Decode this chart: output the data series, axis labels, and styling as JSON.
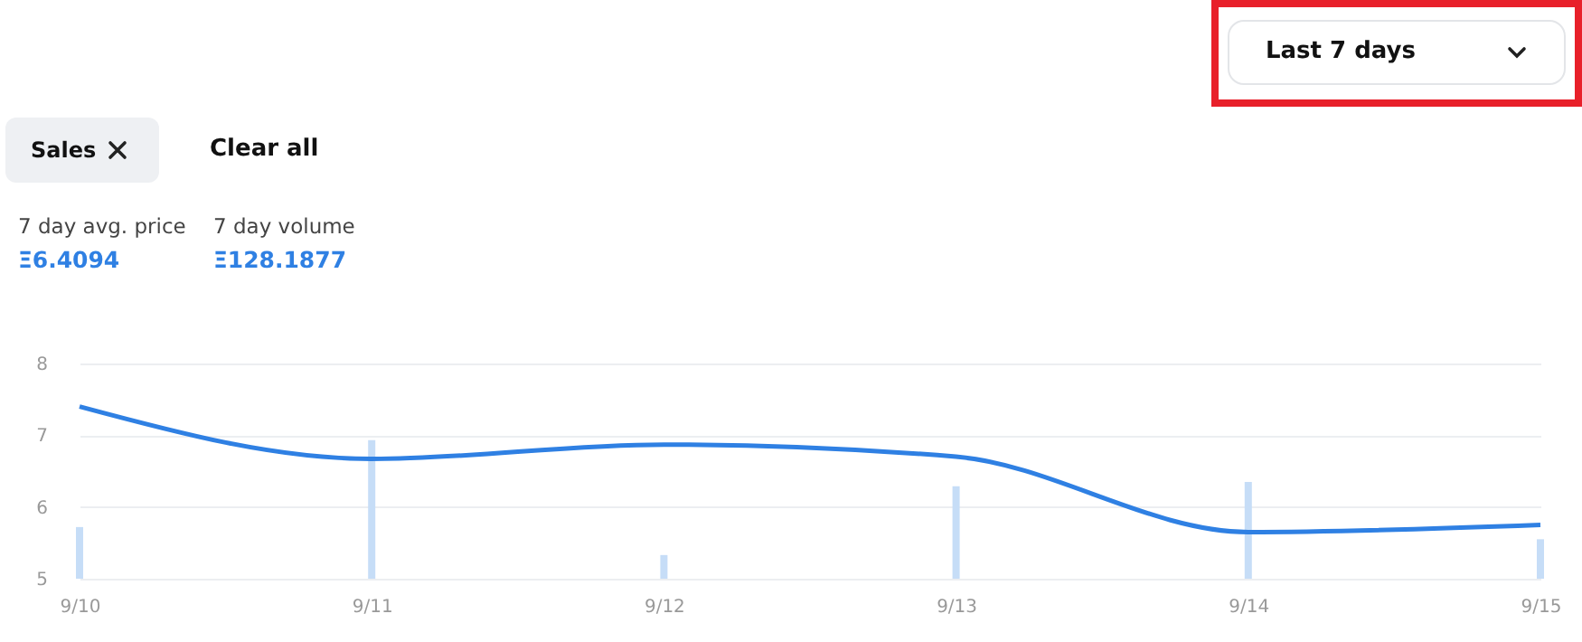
{
  "chart_data": {
    "type": "line",
    "categories": [
      "9/10",
      "9/11",
      "9/12",
      "9/13",
      "9/14",
      "9/15"
    ],
    "series": [
      {
        "type": "bar",
        "color": "#c6ddf7",
        "values": [
          5.72,
          6.93,
          5.33,
          6.29,
          6.35,
          5.55
        ]
      },
      {
        "color": "#2f80e3",
        "values": [
          7.4,
          6.67,
          6.87,
          6.7,
          5.65,
          5.75
        ]
      }
    ],
    "ylim": [
      5,
      8.05
    ],
    "yticks": [
      5,
      6,
      7,
      8
    ],
    "grid": "y",
    "marker": "none",
    "line_style": "solid",
    "annotations": [
      "Last 7 days",
      "Sales",
      "Clear all",
      "7 day avg. price",
      "Ξ6.4094",
      "7 day volume",
      "Ξ128.1877"
    ]
  }
}
